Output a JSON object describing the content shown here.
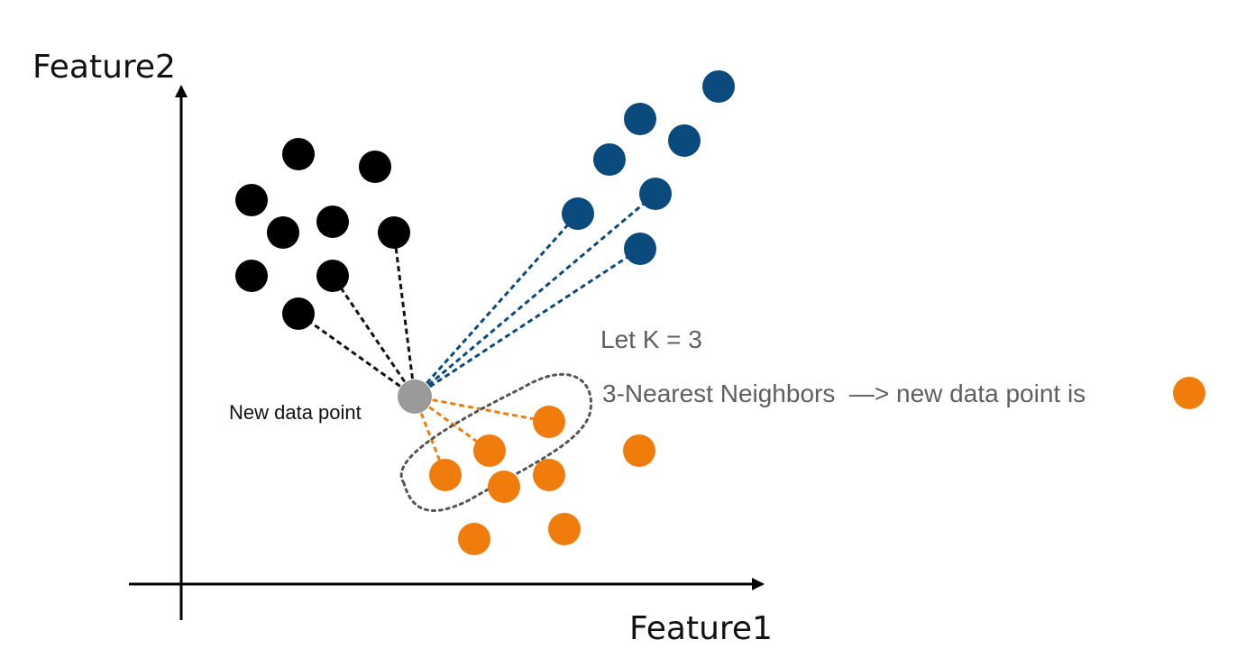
{
  "axes": {
    "x_label": "Feature1",
    "y_label": "Feature2"
  },
  "labels": {
    "new_point": "New data point",
    "k_value": "Let K = 3",
    "result": "3-Nearest Neighbors  —> new data point is"
  },
  "colors": {
    "black_class": "#000000",
    "blue_class": "#0b4a7c",
    "orange_class": "#f07c0c",
    "new_point": "#9a9a9a",
    "axis": "#000000",
    "neighborhood_outline": "#555555",
    "label_gray": "#5f5f5f"
  },
  "diagram": {
    "classes": [
      "black",
      "blue",
      "orange"
    ],
    "k": 3,
    "predicted_class": "orange",
    "result_icon": "orange-circle-icon"
  }
}
